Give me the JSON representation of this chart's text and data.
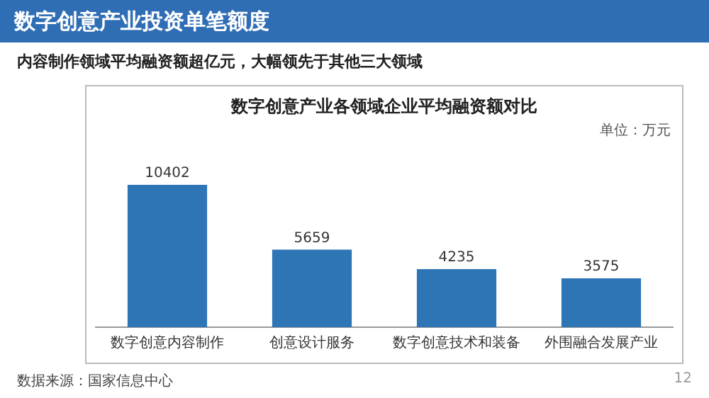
{
  "chart_data": {
    "type": "bar",
    "title": "数字创意产业投资单笔额度",
    "subtitle": "内容制作领域平均融资额超亿元，大幅领先于其他三大领域",
    "annotations": [
      "数字创意产业各领域企业平均融资额对比",
      "数据来源：国家信息中心",
      "12"
    ],
    "ylabel": "单位：万元",
    "categories": [
      "数字创意内容制作",
      "创意设计服务",
      "数字创意技术和装备",
      "外围融合发展产业"
    ],
    "values": [
      10402,
      5659,
      4235,
      3575
    ],
    "color": "#2e75b6",
    "data_labels": true,
    "grid": false,
    "legend": false
  }
}
